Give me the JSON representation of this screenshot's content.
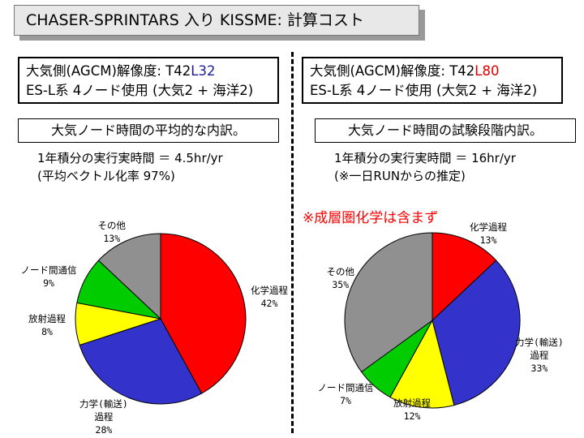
{
  "title": "CHASER-SPRINTARS 入り KISSME: 計算コスト",
  "left": {
    "spec_line1_pre": "大気側(AGCM)解像度: T42",
    "spec_line1_hl": "L32",
    "spec_line2": "ES-L系 4ノード使用 (大気2 + 海洋2)",
    "subtitle": "大気ノード時間の平均的な内訳。",
    "note1": "1年積分の実行実時間 ＝ 4.5hr/yr",
    "note2": "(平均ベクトル化率 97%)"
  },
  "right": {
    "spec_line1_pre": "大気側(AGCM)解像度: T42",
    "spec_line1_hl": "L80",
    "spec_line2": "ES-L系 4ノード使用 (大気2 + 海洋2)",
    "subtitle": "大気ノード時間の試験段階内訳。",
    "note1": "1年積分の実行実時間 ＝ 16hr/yr",
    "note2": "(※一日RUNからの推定)",
    "warning": "※成層圏化学は含まず"
  },
  "colors": {
    "chemistry": "#ff0000",
    "transport": "#3333cc",
    "radiation": "#ffff00",
    "communication": "#00cc00",
    "other": "#909090"
  },
  "chart_data": [
    {
      "type": "pie",
      "slices": [
        {
          "label": "化学過程",
          "label_lines": [
            "化学過程"
          ],
          "value": 42,
          "pct_label": "42%",
          "color_key": "chemistry"
        },
        {
          "label": "力学(輸送)過程",
          "label_lines": [
            "力学(輸送)",
            "過程"
          ],
          "value": 28,
          "pct_label": "28%",
          "color_key": "transport"
        },
        {
          "label": "放射過程",
          "label_lines": [
            "放射過程"
          ],
          "value": 8,
          "pct_label": "8%",
          "color_key": "radiation"
        },
        {
          "label": "ノード間通信",
          "label_lines": [
            "ノード間通信"
          ],
          "value": 9,
          "pct_label": "9%",
          "color_key": "communication"
        },
        {
          "label": "その他",
          "label_lines": [
            "その他"
          ],
          "value": 13,
          "pct_label": "13%",
          "color_key": "other"
        }
      ]
    },
    {
      "type": "pie",
      "slices": [
        {
          "label": "化学過程",
          "label_lines": [
            "化学過程"
          ],
          "value": 13,
          "pct_label": "13%",
          "color_key": "chemistry"
        },
        {
          "label": "力学(輸送)過程",
          "label_lines": [
            "力学(輸送)",
            "過程"
          ],
          "value": 33,
          "pct_label": "33%",
          "color_key": "transport"
        },
        {
          "label": "放射過程",
          "label_lines": [
            "放射過程"
          ],
          "value": 12,
          "pct_label": "12%",
          "color_key": "radiation"
        },
        {
          "label": "ノード間通信",
          "label_lines": [
            "ノード間通信"
          ],
          "value": 7,
          "pct_label": "7%",
          "color_key": "communication"
        },
        {
          "label": "その他",
          "label_lines": [
            "その他"
          ],
          "value": 35,
          "pct_label": "35%",
          "color_key": "other"
        }
      ]
    }
  ]
}
